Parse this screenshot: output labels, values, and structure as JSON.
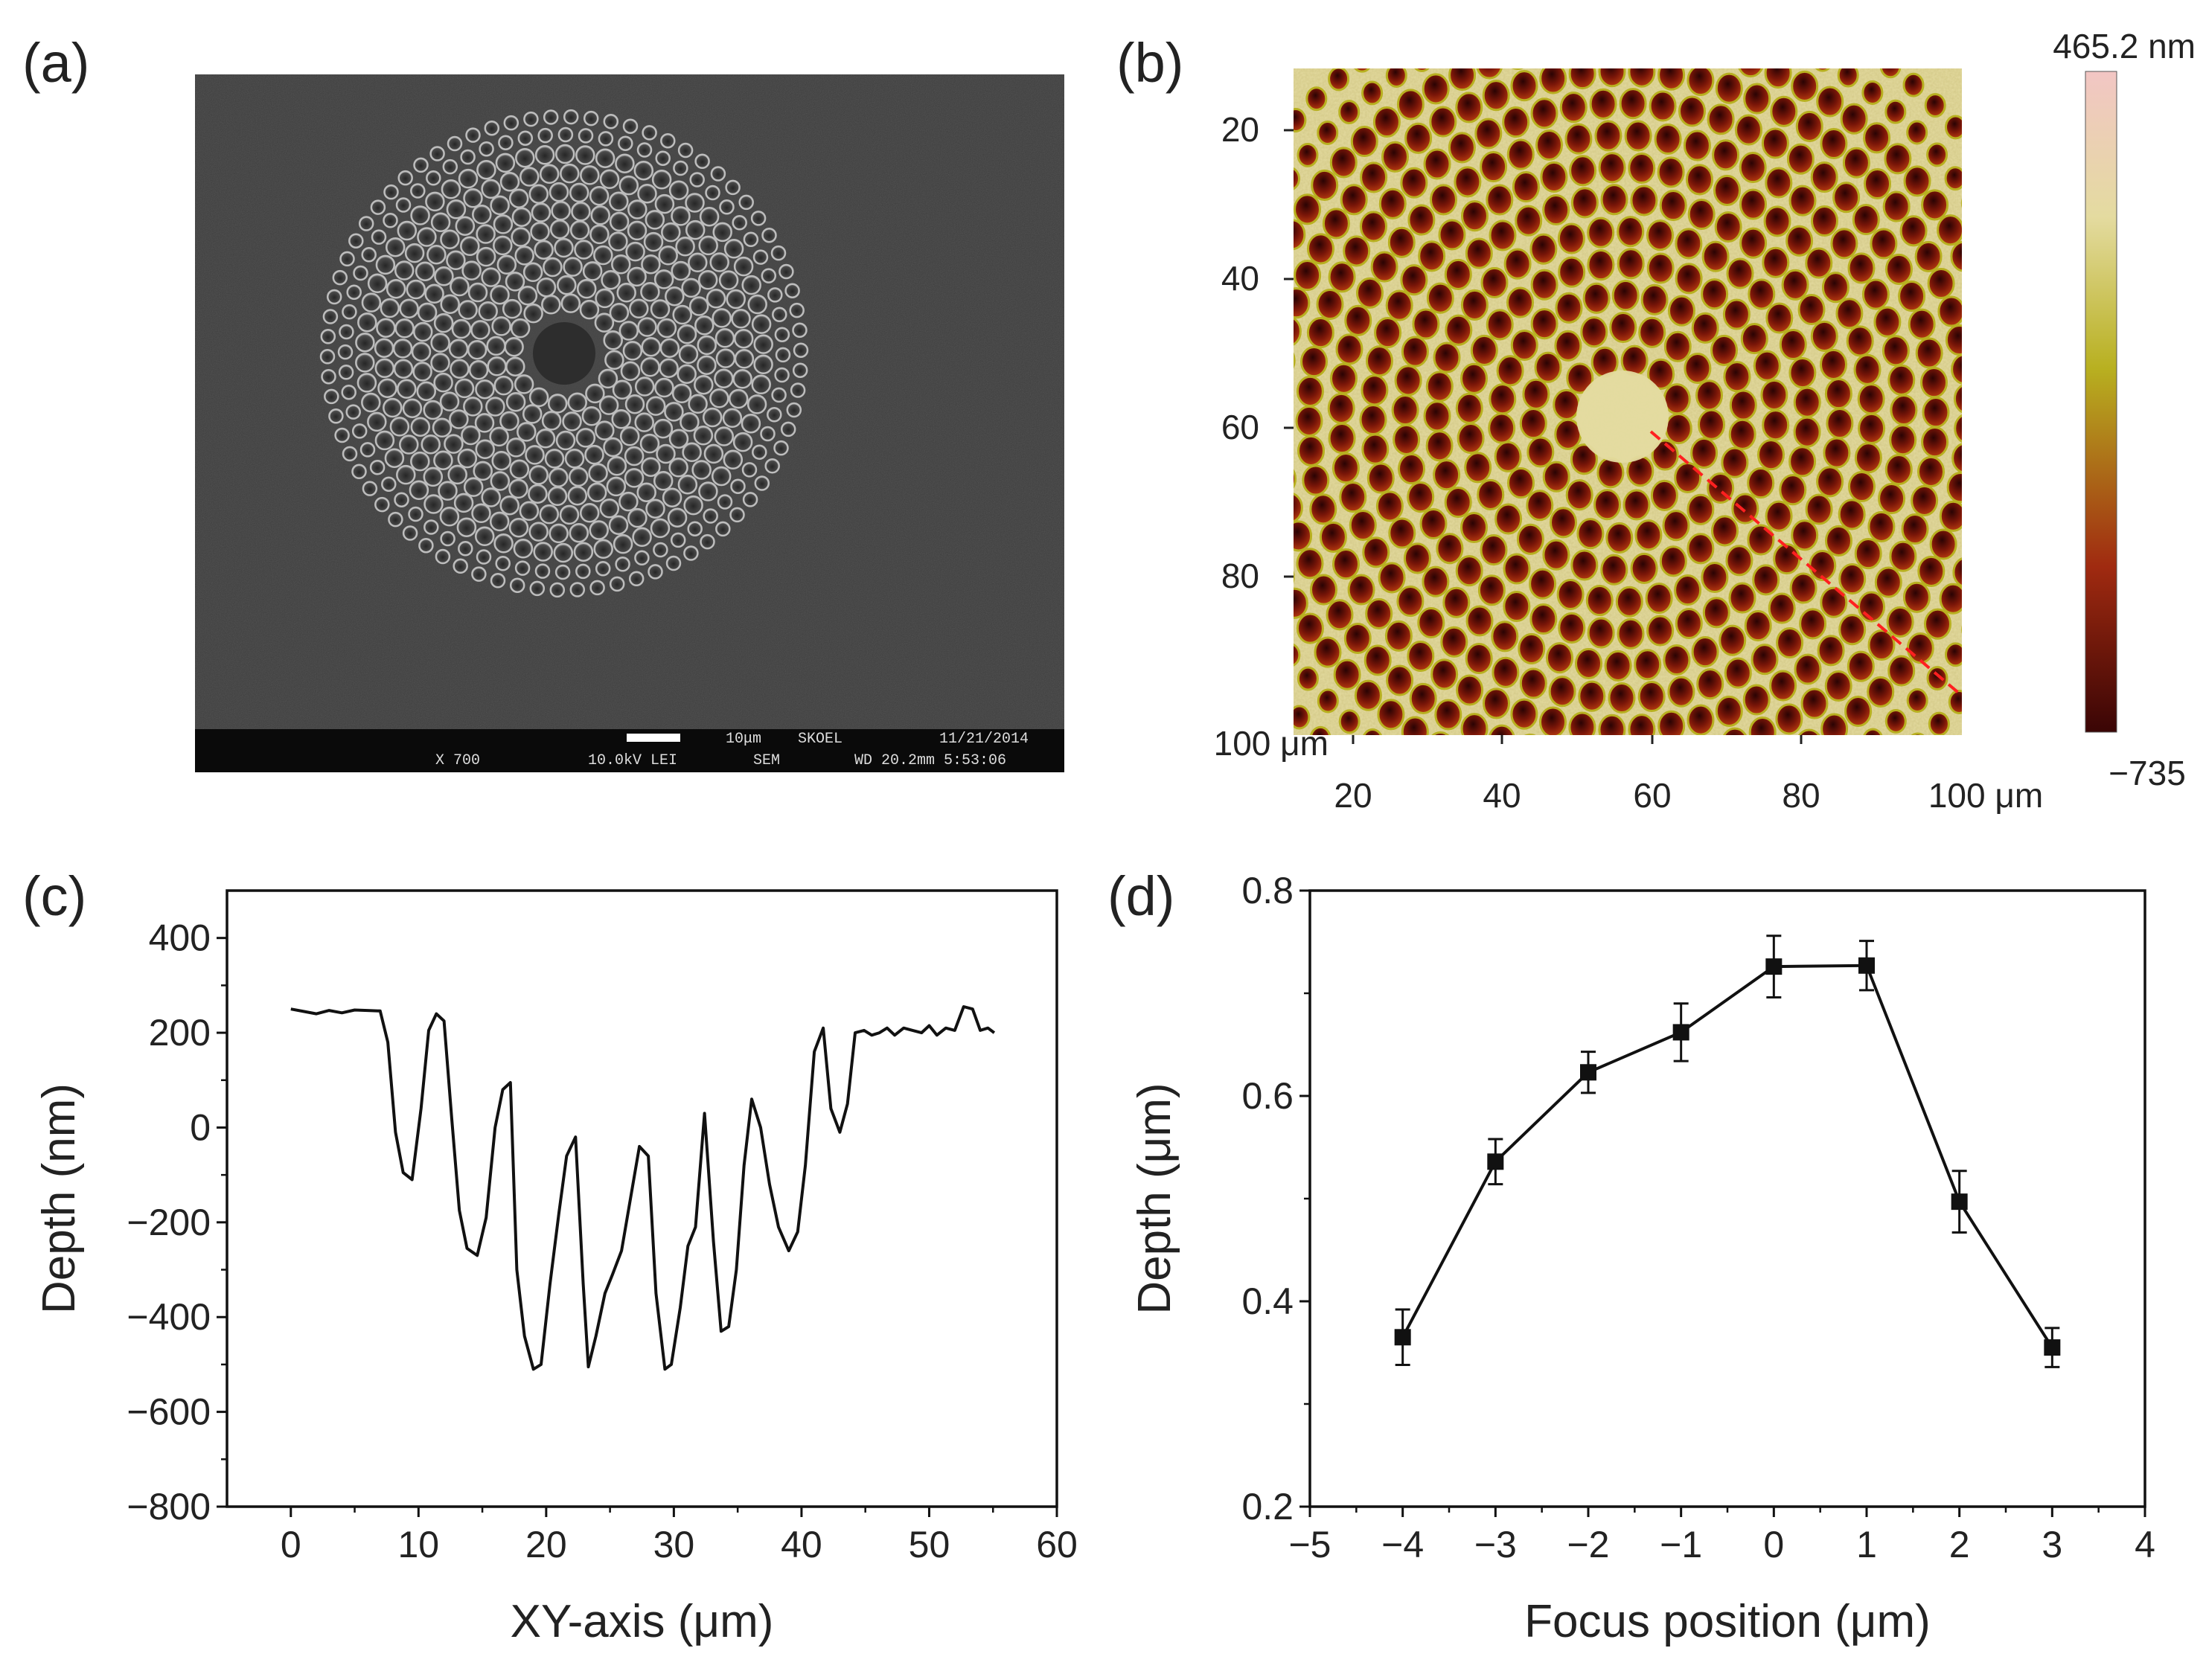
{
  "panels": {
    "a": {
      "label": "(a)",
      "sem_bar": {
        "scale": "10μm",
        "lab": "SKOEL",
        "date": "11/21/2014",
        "magnification": "X 700",
        "voltage": "10.0kV LEI",
        "mode": "SEM",
        "wd_time": "WD 20.2mm 5:53:06"
      }
    },
    "b": {
      "label": "(b)",
      "y_ticks": [
        "20",
        "40",
        "60",
        "80",
        "100 μm"
      ],
      "x_ticks": [
        "20",
        "40",
        "60",
        "80",
        "100 μm"
      ],
      "colorbar": {
        "max": "465.2 nm",
        "min": "−735"
      },
      "colors": {
        "high": "#f2c6c4",
        "mid_high": "#e4dba0",
        "mid": "#b8b020",
        "mid_low": "#a02a10",
        "low": "#3a0505",
        "line": "#ff2020"
      }
    },
    "c": {
      "label": "(c)"
    },
    "d": {
      "label": "(d)"
    }
  },
  "chart_data": [
    {
      "type": "line",
      "panel": "c",
      "xlabel": "XY-axis (μm)",
      "ylabel": "Depth (nm)",
      "xlim": [
        -5,
        60
      ],
      "ylim": [
        -800,
        500
      ],
      "x_ticks": [
        0,
        10,
        20,
        30,
        40,
        50,
        60
      ],
      "y_ticks": [
        -800,
        -600,
        -400,
        -200,
        0,
        200,
        400
      ],
      "x_tick_labels": [
        "0",
        "10",
        "20",
        "30",
        "40",
        "50",
        "60"
      ],
      "y_tick_labels": [
        "−800",
        "−600",
        "−400",
        "−200",
        "0",
        "200",
        "400"
      ],
      "x": [
        0,
        1,
        2,
        3,
        4,
        5,
        6,
        7,
        7.6,
        8.2,
        8.8,
        9.5,
        10.2,
        10.8,
        11.4,
        12,
        12.6,
        13.2,
        13.8,
        14.6,
        15.3,
        16,
        16.6,
        17.2,
        17.7,
        18.3,
        19,
        19.6,
        20.3,
        21,
        21.6,
        22.3,
        22.9,
        23.3,
        23.9,
        24.6,
        25.2,
        25.9,
        26.6,
        27.3,
        28,
        28.6,
        29.3,
        29.8,
        30.5,
        31.1,
        31.7,
        32.4,
        33.1,
        33.7,
        34.3,
        34.9,
        35.5,
        36.1,
        36.8,
        37.5,
        38.2,
        39,
        39.7,
        40.3,
        41,
        41.7,
        42.3,
        43,
        43.6,
        44.2,
        44.9,
        45.5,
        46.1,
        46.7,
        47.3,
        48,
        48.7,
        49.4,
        50,
        50.6,
        51.3,
        52,
        52.7,
        53.4,
        54,
        54.6,
        55.1
      ],
      "y": [
        250,
        245,
        240,
        247,
        242,
        248,
        247,
        246,
        180,
        -10,
        -95,
        -110,
        40,
        205,
        240,
        225,
        20,
        -175,
        -255,
        -270,
        -190,
        0,
        80,
        95,
        -300,
        -440,
        -510,
        -500,
        -330,
        -180,
        -60,
        -20,
        -330,
        -505,
        -440,
        -350,
        -310,
        -260,
        -150,
        -40,
        -60,
        -350,
        -510,
        -500,
        -380,
        -250,
        -210,
        30,
        -240,
        -430,
        -420,
        -300,
        -80,
        60,
        0,
        -120,
        -210,
        -260,
        -220,
        -80,
        160,
        210,
        40,
        -10,
        50,
        200,
        205,
        195,
        200,
        210,
        195,
        210,
        205,
        200,
        215,
        195,
        210,
        205,
        255,
        250,
        205,
        210,
        200
      ]
    },
    {
      "type": "scatter",
      "panel": "d",
      "xlabel": "Focus position (μm)",
      "ylabel": "Depth (μm)",
      "xlim": [
        -5,
        4
      ],
      "ylim": [
        0.2,
        0.8
      ],
      "x_ticks": [
        -5,
        -4,
        -3,
        -2,
        -1,
        0,
        1,
        2,
        3,
        4
      ],
      "y_ticks": [
        0.2,
        0.4,
        0.6,
        0.8
      ],
      "x_tick_labels": [
        "−5",
        "−4",
        "−3",
        "−2",
        "−1",
        "0",
        "1",
        "2",
        "3",
        "4"
      ],
      "y_tick_labels": [
        "0.2",
        "0.4",
        "0.6",
        "0.8"
      ],
      "x": [
        -4,
        -3,
        -2,
        -1,
        0,
        1,
        2,
        3
      ],
      "y": [
        0.365,
        0.536,
        0.623,
        0.662,
        0.726,
        0.727,
        0.497,
        0.355
      ],
      "error": [
        0.027,
        0.022,
        0.02,
        0.028,
        0.03,
        0.024,
        0.03,
        0.019
      ],
      "connected": true
    }
  ]
}
